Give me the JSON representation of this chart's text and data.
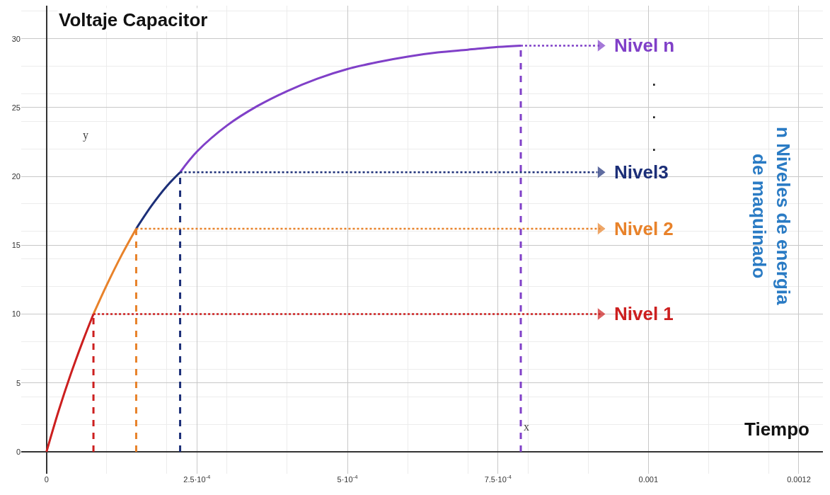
{
  "chart_data": {
    "type": "line",
    "xlabel": "Tiempo",
    "ylabel": "Voltaje Capacitor",
    "xlim": [
      -4.2e-05,
      0.00129
    ],
    "ylim": [
      -1.6,
      32.4
    ],
    "xticks": [
      0,
      {
        "value": 0.00025,
        "label": "2.5·10$^{-4}$"
      },
      {
        "value": 0.0005,
        "label": "5·10$^{-4}$"
      },
      {
        "value": 0.00075,
        "label": "7.5·10$^{-4}$"
      },
      0.001,
      {
        "value": 0.00125,
        "label": "0.0012"
      }
    ],
    "yticks": [
      0,
      5,
      10,
      15,
      20,
      25,
      30
    ],
    "grid": true,
    "marker": "none",
    "series": [
      {
        "color": "#cc1f1f",
        "line_style": "solid",
        "x": [
          0,
          2e-05,
          4e-05,
          6e-05,
          7.8e-05
        ],
        "values": [
          0,
          2.95,
          5.6,
          8.0,
          10.0
        ]
      },
      {
        "color": "#e8822a",
        "line_style": "solid",
        "x": [
          7.8e-05,
          0.0001,
          0.000125,
          0.000149
        ],
        "values": [
          10.0,
          12.1,
          14.3,
          16.2
        ]
      },
      {
        "color": "#1c2f78",
        "line_style": "solid",
        "x": [
          0.000149,
          0.000175,
          0.0002,
          0.000222
        ],
        "values": [
          16.2,
          17.9,
          19.3,
          20.3
        ]
      },
      {
        "color": "#8040c8",
        "line_style": "solid",
        "x": [
          0.000222,
          0.00025,
          0.0003,
          0.00035,
          0.0004,
          0.00045,
          0.0005,
          0.00055,
          0.0006,
          0.00065,
          0.0007,
          0.00075,
          0.000788
        ],
        "values": [
          20.3,
          21.8,
          23.7,
          25.1,
          26.2,
          27.1,
          27.8,
          28.3,
          28.7,
          29.0,
          29.2,
          29.4,
          29.5
        ]
      },
      {
        "color": "#cc1f1f",
        "line_style": "dashed",
        "x": [
          7.8e-05,
          7.8e-05
        ],
        "values": [
          0,
          10.0
        ]
      },
      {
        "color": "#e8822a",
        "line_style": "dashed",
        "x": [
          0.000149,
          0.000149
        ],
        "values": [
          0,
          16.2
        ]
      },
      {
        "color": "#1c2f78",
        "line_style": "dashed",
        "x": [
          0.000222,
          0.000222
        ],
        "values": [
          0,
          20.3
        ]
      },
      {
        "color": "#8040c8",
        "line_style": "dashed",
        "x": [
          0.000788,
          0.000788
        ],
        "values": [
          0,
          29.5
        ]
      },
      {
        "name": "Nivel 1",
        "color": "#cc1f1f",
        "line_style": "dotted",
        "marker": "triangle",
        "x": [
          7.8e-05,
          0.00092
        ],
        "values": [
          10.0,
          10.0
        ]
      },
      {
        "name": "Nivel 2",
        "color": "#e8822a",
        "line_style": "dotted",
        "marker": "triangle",
        "x": [
          0.000149,
          0.00092
        ],
        "values": [
          16.2,
          16.2
        ]
      },
      {
        "name": "Nivel3",
        "color": "#1c2f78",
        "line_style": "dotted",
        "marker": "triangle",
        "x": [
          0.000222,
          0.00092
        ],
        "values": [
          20.3,
          20.3
        ]
      },
      {
        "name": "Nivel n",
        "color": "#8040c8",
        "line_style": "dotted",
        "marker": "triangle",
        "x": [
          0.000788,
          0.00092
        ],
        "values": [
          29.5,
          29.5
        ]
      }
    ],
    "annotations": [
      "y",
      "x",
      "·",
      "·",
      "·",
      "n Niveles de energia",
      "de maquinado"
    ]
  }
}
